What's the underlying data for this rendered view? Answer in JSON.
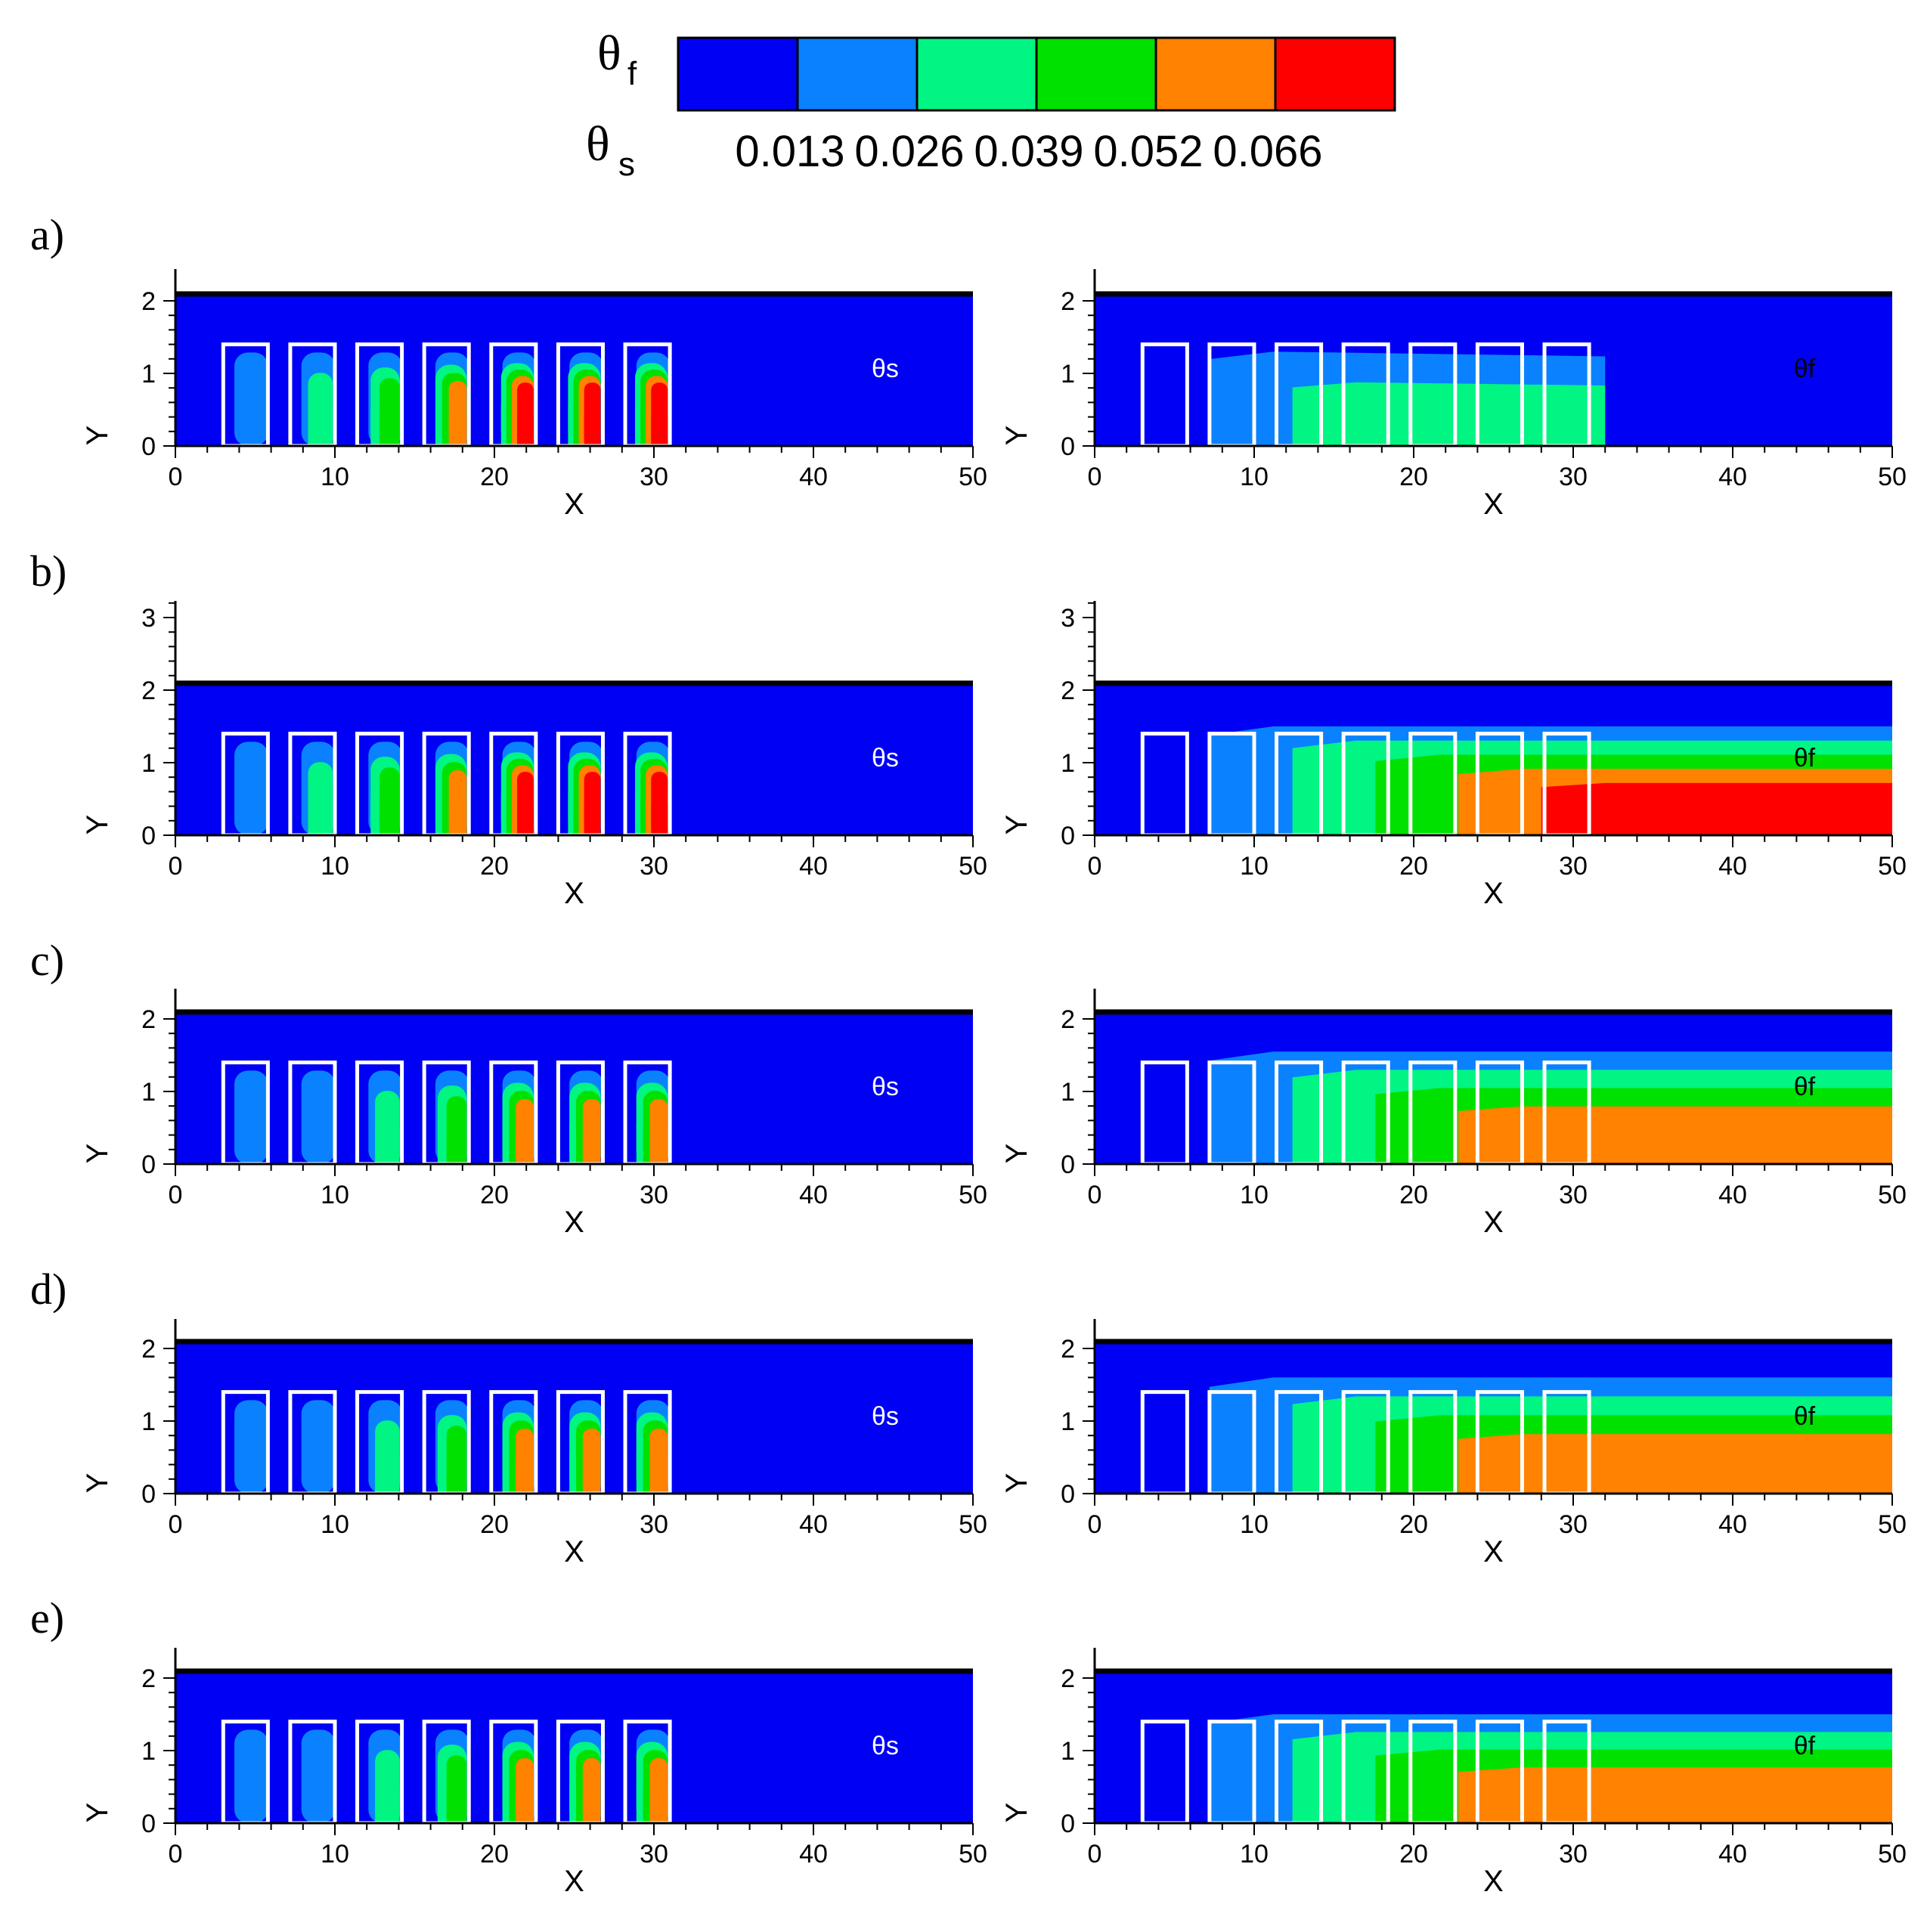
{
  "legend": {
    "fluid_symbol": "θ",
    "fluid_sub": "f",
    "solid_symbol": "θ",
    "solid_sub": "s",
    "ticks": [
      "0.013",
      "0.026",
      "0.039",
      "0.052",
      "0.066"
    ],
    "colors": [
      "#0000f5",
      "#0a82ff",
      "#00f582",
      "#00e100",
      "#ff8200",
      "#ff0000"
    ]
  },
  "chart_data": {
    "type": "heatmap",
    "title": "",
    "xlabel": "X",
    "ylabel": "Y",
    "xlim": [
      0,
      50
    ],
    "x_ticks": [
      "0",
      "10",
      "20",
      "30",
      "40",
      "50"
    ],
    "blocks_x": [
      [
        3,
        5.8
      ],
      [
        7.2,
        10
      ],
      [
        11.4,
        14.2
      ],
      [
        15.6,
        18.4
      ],
      [
        19.8,
        22.6
      ],
      [
        24,
        26.8
      ],
      [
        28.2,
        31
      ]
    ],
    "block_height": 1.4,
    "channel_height": 2.1,
    "panels": [
      {
        "label": "a)",
        "ylim": [
          0,
          2.1
        ],
        "y_ticks": [
          "0",
          "1",
          "2"
        ],
        "solid": {
          "field": "θs",
          "block_levels": [
            1,
            2,
            3,
            4,
            5,
            5,
            5
          ]
        },
        "fluid": {
          "field": "θf",
          "wake_end": 32,
          "wake_level": 2,
          "wake_top": 1.3
        }
      },
      {
        "label": "b)",
        "ylim": [
          0,
          3.2
        ],
        "y_ticks": [
          "0",
          "1",
          "2",
          "3"
        ],
        "solid": {
          "field": "θs",
          "block_levels": [
            1,
            2,
            3,
            4,
            5,
            5,
            5
          ]
        },
        "fluid": {
          "field": "θf",
          "wake_end": 50,
          "wake_level": 5,
          "wake_top": 1.5
        }
      },
      {
        "label": "c)",
        "ylim": [
          0,
          2.1
        ],
        "y_ticks": [
          "0",
          "1",
          "2"
        ],
        "solid": {
          "field": "θs",
          "block_levels": [
            1,
            1,
            2,
            3,
            4,
            4,
            4
          ]
        },
        "fluid": {
          "field": "θf",
          "wake_end": 50,
          "wake_level": 4,
          "wake_top": 1.55
        }
      },
      {
        "label": "d)",
        "ylim": [
          0,
          2.1
        ],
        "y_ticks": [
          "0",
          "1",
          "2"
        ],
        "solid": {
          "field": "θs",
          "block_levels": [
            1,
            1,
            2,
            3,
            4,
            4,
            4
          ]
        },
        "fluid": {
          "field": "θf",
          "wake_end": 50,
          "wake_level": 4,
          "wake_top": 1.6
        }
      },
      {
        "label": "e)",
        "ylim": [
          0,
          2.1
        ],
        "y_ticks": [
          "0",
          "1",
          "2"
        ],
        "solid": {
          "field": "θs",
          "block_levels": [
            1,
            1,
            2,
            3,
            4,
            4,
            4
          ]
        },
        "fluid": {
          "field": "θf",
          "wake_end": 50,
          "wake_level": 4,
          "wake_top": 1.5
        }
      }
    ]
  }
}
